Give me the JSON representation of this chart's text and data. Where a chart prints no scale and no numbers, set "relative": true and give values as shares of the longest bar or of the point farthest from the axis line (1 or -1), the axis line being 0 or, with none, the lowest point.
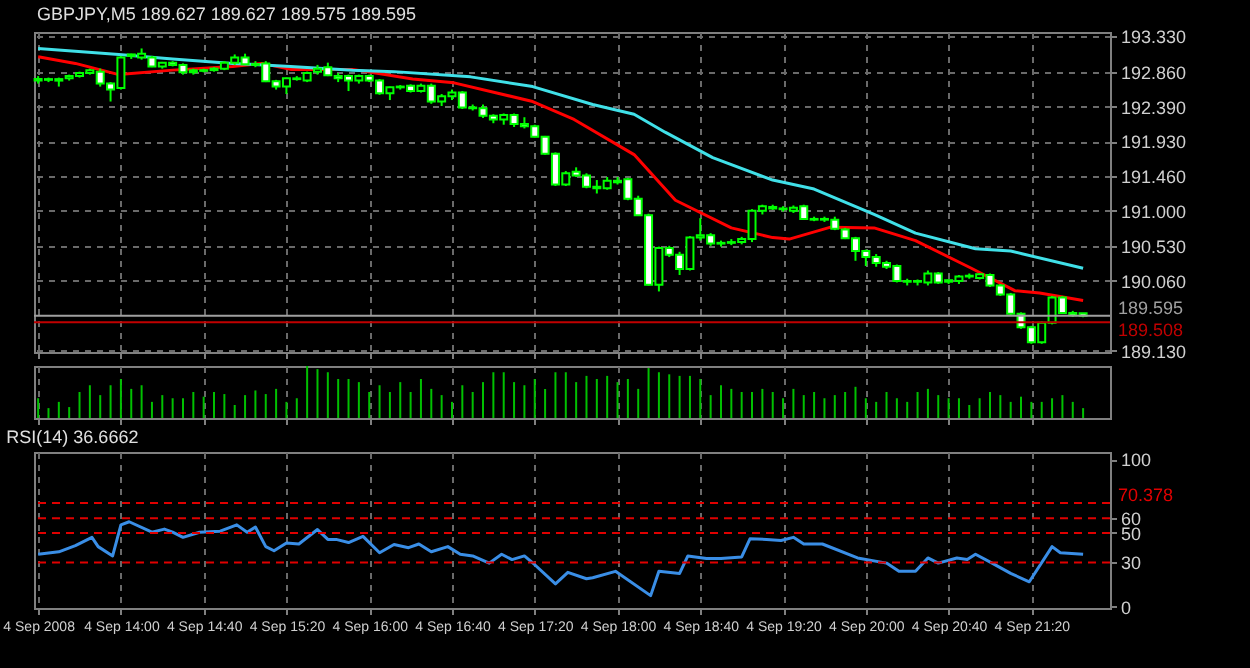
{
  "chart_data": [
    {
      "type": "candlestick",
      "title": "GBPJPY,M5  189.627 189.627 189.575 189.595",
      "color": "#00ff00",
      "x": [
        "2008-09-04T13:20",
        "2008-09-04T13:25",
        "2008-09-04T13:30",
        "2008-09-04T13:35",
        "2008-09-04T13:40",
        "2008-09-04T13:45",
        "2008-09-04T13:50",
        "2008-09-04T13:55",
        "2008-09-04T14:00",
        "2008-09-04T14:05",
        "2008-09-04T14:10",
        "2008-09-04T14:15",
        "2008-09-04T14:20",
        "2008-09-04T14:25",
        "2008-09-04T14:30",
        "2008-09-04T14:35",
        "2008-09-04T14:40",
        "2008-09-04T14:45",
        "2008-09-04T14:50",
        "2008-09-04T14:55",
        "2008-09-04T15:00",
        "2008-09-04T15:05",
        "2008-09-04T15:10",
        "2008-09-04T15:15",
        "2008-09-04T15:20",
        "2008-09-04T15:25",
        "2008-09-04T15:30",
        "2008-09-04T15:35",
        "2008-09-04T15:40",
        "2008-09-04T15:45",
        "2008-09-04T15:50",
        "2008-09-04T15:55",
        "2008-09-04T16:00",
        "2008-09-04T16:05",
        "2008-09-04T16:10",
        "2008-09-04T16:15",
        "2008-09-04T16:20",
        "2008-09-04T16:25",
        "2008-09-04T16:30",
        "2008-09-04T16:35",
        "2008-09-04T16:40",
        "2008-09-04T16:45",
        "2008-09-04T16:50",
        "2008-09-04T16:55",
        "2008-09-04T17:00",
        "2008-09-04T17:05",
        "2008-09-04T17:10",
        "2008-09-04T17:15",
        "2008-09-04T17:20",
        "2008-09-04T17:25",
        "2008-09-04T17:30",
        "2008-09-04T17:35",
        "2008-09-04T17:40",
        "2008-09-04T17:45",
        "2008-09-04T17:50",
        "2008-09-04T17:55",
        "2008-09-04T18:00",
        "2008-09-04T18:05",
        "2008-09-04T18:10",
        "2008-09-04T18:15",
        "2008-09-04T18:20",
        "2008-09-04T18:25",
        "2008-09-04T18:30",
        "2008-09-04T18:35",
        "2008-09-04T18:40",
        "2008-09-04T18:45",
        "2008-09-04T18:50",
        "2008-09-04T18:55",
        "2008-09-04T19:00",
        "2008-09-04T19:05",
        "2008-09-04T19:10",
        "2008-09-04T19:15",
        "2008-09-04T19:20",
        "2008-09-04T19:25",
        "2008-09-04T19:30",
        "2008-09-04T19:35",
        "2008-09-04T19:40",
        "2008-09-04T19:45",
        "2008-09-04T19:50",
        "2008-09-04T19:55",
        "2008-09-04T20:00",
        "2008-09-04T20:05",
        "2008-09-04T20:10",
        "2008-09-04T20:15",
        "2008-09-04T20:20",
        "2008-09-04T20:25",
        "2008-09-04T20:30",
        "2008-09-04T20:35",
        "2008-09-04T20:40",
        "2008-09-04T20:45",
        "2008-09-04T20:50",
        "2008-09-04T20:55",
        "2008-09-04T21:00",
        "2008-09-04T21:05",
        "2008-09-04T21:10",
        "2008-09-04T21:15",
        "2008-09-04T21:20",
        "2008-09-04T21:25",
        "2008-09-04T21:30",
        "2008-09-04T21:35",
        "2008-09-04T21:40",
        "2008-09-04T21:45"
      ],
      "ohlc": [
        [
          192.74,
          192.8,
          192.7,
          192.76
        ],
        [
          192.76,
          192.78,
          192.72,
          192.75
        ],
        [
          192.74,
          192.78,
          192.66,
          192.76
        ],
        [
          192.77,
          192.82,
          192.74,
          192.8
        ],
        [
          192.8,
          192.86,
          192.78,
          192.84
        ],
        [
          192.84,
          192.9,
          192.82,
          192.88
        ],
        [
          192.86,
          192.9,
          192.66,
          192.7
        ],
        [
          192.7,
          192.72,
          192.46,
          192.62
        ],
        [
          192.64,
          193.07,
          192.62,
          193.05
        ],
        [
          193.07,
          193.1,
          193.03,
          193.09
        ],
        [
          193.05,
          193.17,
          193.02,
          193.1
        ],
        [
          193.05,
          193.07,
          192.92,
          192.93
        ],
        [
          192.93,
          192.99,
          192.9,
          192.98
        ],
        [
          192.98,
          193.0,
          192.93,
          192.95
        ],
        [
          192.95,
          192.97,
          192.82,
          192.85
        ],
        [
          192.85,
          192.9,
          192.82,
          192.88
        ],
        [
          192.88,
          192.9,
          192.85,
          192.87
        ],
        [
          192.88,
          192.92,
          192.86,
          192.9
        ],
        [
          192.9,
          193.0,
          192.88,
          192.98
        ],
        [
          192.98,
          193.09,
          192.95,
          193.05
        ],
        [
          193.05,
          193.1,
          192.95,
          192.96
        ],
        [
          192.96,
          193.0,
          192.92,
          192.95
        ],
        [
          192.97,
          193.0,
          192.72,
          192.73
        ],
        [
          192.73,
          192.75,
          192.62,
          192.66
        ],
        [
          192.66,
          192.78,
          192.56,
          192.77
        ],
        [
          192.77,
          192.8,
          192.74,
          192.76
        ],
        [
          192.74,
          192.86,
          192.72,
          192.84
        ],
        [
          192.86,
          192.95,
          192.82,
          192.9
        ],
        [
          192.92,
          192.98,
          192.8,
          192.81
        ],
        [
          192.8,
          192.84,
          192.72,
          192.77
        ],
        [
          192.8,
          192.82,
          192.6,
          192.74
        ],
        [
          192.74,
          192.82,
          192.7,
          192.8
        ],
        [
          192.8,
          192.82,
          192.72,
          192.74
        ],
        [
          192.74,
          192.76,
          192.55,
          192.57
        ],
        [
          192.57,
          192.66,
          192.48,
          192.65
        ],
        [
          192.65,
          192.68,
          192.62,
          192.66
        ],
        [
          192.67,
          192.69,
          192.58,
          192.6
        ],
        [
          192.6,
          192.7,
          192.58,
          192.67
        ],
        [
          192.67,
          192.7,
          192.43,
          192.46
        ],
        [
          192.46,
          192.56,
          192.4,
          192.53
        ],
        [
          192.53,
          192.62,
          192.48,
          192.58
        ],
        [
          192.58,
          192.6,
          192.36,
          192.38
        ],
        [
          192.38,
          192.42,
          192.34,
          192.37
        ],
        [
          192.37,
          192.42,
          192.24,
          192.27
        ],
        [
          192.27,
          192.29,
          192.17,
          192.22
        ],
        [
          192.22,
          192.3,
          192.15,
          192.28
        ],
        [
          192.28,
          192.3,
          192.12,
          192.16
        ],
        [
          192.16,
          192.25,
          192.1,
          192.13
        ],
        [
          192.13,
          192.15,
          191.98,
          191.99
        ],
        [
          191.99,
          192.0,
          191.75,
          191.76
        ],
        [
          191.76,
          191.78,
          191.33,
          191.35
        ],
        [
          191.35,
          191.53,
          191.33,
          191.5
        ],
        [
          191.52,
          191.58,
          191.45,
          191.47
        ],
        [
          191.47,
          191.5,
          191.3,
          191.32
        ],
        [
          191.32,
          191.41,
          191.23,
          191.3
        ],
        [
          191.3,
          191.45,
          191.28,
          191.4
        ],
        [
          191.4,
          191.45,
          191.35,
          191.38
        ],
        [
          191.42,
          191.44,
          191.14,
          191.16
        ],
        [
          191.16,
          191.2,
          190.93,
          190.94
        ],
        [
          190.94,
          190.96,
          190.0,
          190.01
        ],
        [
          190.01,
          190.52,
          189.92,
          190.5
        ],
        [
          190.5,
          190.53,
          190.38,
          190.41
        ],
        [
          190.41,
          190.45,
          190.14,
          190.22
        ],
        [
          190.22,
          190.66,
          190.2,
          190.64
        ],
        [
          190.64,
          190.9,
          190.6,
          190.67
        ],
        [
          190.67,
          190.7,
          190.53,
          190.56
        ],
        [
          190.56,
          190.6,
          190.52,
          190.57
        ],
        [
          190.57,
          190.62,
          190.54,
          190.58
        ],
        [
          190.58,
          190.65,
          190.55,
          190.62
        ],
        [
          190.62,
          191.02,
          190.58,
          191.0
        ],
        [
          191.0,
          191.08,
          190.95,
          191.06
        ],
        [
          191.05,
          191.08,
          191.01,
          191.03
        ],
        [
          191.03,
          191.06,
          190.99,
          191.02
        ],
        [
          191.0,
          191.07,
          190.97,
          191.04
        ],
        [
          191.06,
          191.08,
          190.88,
          190.89
        ],
        [
          190.89,
          190.92,
          190.86,
          190.88
        ],
        [
          190.88,
          190.92,
          190.85,
          190.89
        ],
        [
          190.88,
          190.92,
          190.74,
          190.76
        ],
        [
          190.75,
          190.77,
          190.62,
          190.63
        ],
        [
          190.63,
          190.65,
          190.33,
          190.46
        ],
        [
          190.46,
          190.48,
          190.26,
          190.38
        ],
        [
          190.38,
          190.42,
          190.25,
          190.3
        ],
        [
          190.3,
          190.33,
          190.22,
          190.25
        ],
        [
          190.26,
          190.28,
          190.04,
          190.06
        ],
        [
          190.06,
          190.09,
          190.0,
          190.05
        ],
        [
          190.05,
          190.08,
          190.0,
          190.06
        ],
        [
          190.04,
          190.2,
          190.0,
          190.16
        ],
        [
          190.16,
          190.18,
          190.02,
          190.04
        ],
        [
          190.05,
          190.08,
          190.02,
          190.07
        ],
        [
          190.06,
          190.14,
          190.02,
          190.12
        ],
        [
          190.12,
          190.16,
          190.09,
          190.13
        ],
        [
          190.1,
          190.16,
          190.08,
          190.15
        ],
        [
          190.14,
          190.16,
          189.98,
          190.0
        ],
        [
          190.0,
          190.02,
          189.86,
          189.88
        ],
        [
          189.88,
          189.9,
          189.6,
          189.62
        ],
        [
          189.62,
          189.64,
          189.42,
          189.44
        ],
        [
          189.44,
          189.46,
          189.22,
          189.24
        ],
        [
          189.24,
          189.52,
          189.22,
          189.5
        ],
        [
          189.5,
          189.86,
          189.48,
          189.84
        ],
        [
          189.84,
          189.86,
          189.62,
          189.63
        ],
        [
          189.63,
          189.66,
          189.58,
          189.6
        ],
        [
          189.627,
          189.627,
          189.575,
          189.595
        ]
      ],
      "colors": [
        "#000000",
        "#ffffff",
        "#000000",
        "#000000",
        "#000000",
        "#000000",
        "#ffffff",
        "#ffffff",
        "#000000",
        "#000000",
        "#000000",
        "#ffffff",
        "#000000",
        "#ffffff",
        "#ffffff",
        "#000000",
        "#ffffff",
        "#000000",
        "#000000",
        "#000000",
        "#ffffff",
        "#ffffff",
        "#ffffff",
        "#ffffff",
        "#000000",
        "#ffffff",
        "#000000",
        "#000000",
        "#ffffff",
        "#ffffff",
        "#ffffff",
        "#000000",
        "#ffffff",
        "#ffffff",
        "#000000",
        "#000000",
        "#ffffff",
        "#000000",
        "#ffffff",
        "#000000",
        "#000000",
        "#ffffff",
        "#ffffff",
        "#ffffff",
        "#ffffff",
        "#000000",
        "#ffffff",
        "#ffffff",
        "#ffffff",
        "#ffffff",
        "#ffffff",
        "#000000",
        "#ffffff",
        "#ffffff",
        "#ffffff",
        "#000000",
        "#ffffff",
        "#ffffff",
        "#ffffff",
        "#ffffff",
        "#000000",
        "#ffffff",
        "#ffffff",
        "#000000",
        "#000000",
        "#ffffff",
        "#000000",
        "#000000",
        "#000000",
        "#000000",
        "#000000",
        "#ffffff",
        "#ffffff",
        "#000000",
        "#ffffff",
        "#ffffff",
        "#000000",
        "#ffffff",
        "#ffffff",
        "#ffffff",
        "#ffffff",
        "#ffffff",
        "#ffffff",
        "#ffffff",
        "#ffffff",
        "#000000",
        "#000000",
        "#ffffff",
        "#000000",
        "#000000",
        "#000000",
        "#000000",
        "#ffffff",
        "#ffffff",
        "#ffffff",
        "#ffffff",
        "#ffffff",
        "#000000",
        "#000000",
        "#ffffff",
        "#ffffff",
        "#ffffff"
      ],
      "series": [
        {
          "type": "line",
          "color": "#ff0000",
          "x": [
            "2008-09-04T13:20",
            "2008-09-04T13:38",
            "2008-09-04T13:59",
            "2008-09-04T14:25",
            "2008-09-04T14:54",
            "2008-09-04T15:08",
            "2008-09-04T15:22",
            "2008-09-04T15:52",
            "2008-09-04T16:21",
            "2008-09-04T16:41",
            "2008-09-04T17:19",
            "2008-09-04T17:39",
            "2008-09-04T18:08",
            "2008-09-04T18:28",
            "2008-09-04T18:55",
            "2008-09-04T19:15",
            "2008-09-04T19:23",
            "2008-09-04T19:43",
            "2008-09-04T20:04",
            "2008-09-04T20:24",
            "2008-09-04T20:51",
            "2008-09-04T21:12",
            "2008-09-04T21:24",
            "2008-09-04T21:45"
          ],
          "values": [
            193.06,
            192.97,
            192.82,
            192.88,
            192.93,
            192.97,
            192.89,
            192.89,
            192.76,
            192.71,
            192.46,
            192.22,
            191.75,
            191.14,
            190.77,
            190.64,
            190.62,
            190.78,
            190.77,
            190.6,
            190.23,
            189.93,
            189.9,
            189.8
          ]
        },
        {
          "type": "line",
          "color": "#40e0e8",
          "x": [
            "2008-09-04T13:20",
            "2008-09-04T13:59",
            "2008-09-04T14:25",
            "2008-09-04T14:54",
            "2008-09-04T15:22",
            "2008-09-04T15:52",
            "2008-09-04T16:12",
            "2008-09-04T16:49",
            "2008-09-04T17:19",
            "2008-09-04T17:48",
            "2008-09-04T18:08",
            "2008-09-04T18:23",
            "2008-09-04T18:46",
            "2008-09-04T19:15",
            "2008-09-04T19:35",
            "2008-09-04T20:04",
            "2008-09-04T20:24",
            "2008-09-04T20:53",
            "2008-09-04T21:10",
            "2008-09-04T21:45"
          ],
          "values": [
            193.17,
            193.09,
            193.03,
            192.97,
            192.93,
            192.88,
            192.86,
            192.79,
            192.66,
            192.42,
            192.29,
            192.05,
            191.71,
            191.41,
            191.29,
            190.95,
            190.7,
            190.49,
            190.46,
            190.23
          ]
        }
      ],
      "ylim": [
        189.11,
        193.39
      ],
      "yticks": [
        {
          "value": 193.33,
          "label": "193.330"
        },
        {
          "value": 192.86,
          "label": "192.860"
        },
        {
          "value": 192.39,
          "label": "192.390"
        },
        {
          "value": 191.93,
          "label": "191.930"
        },
        {
          "value": 191.46,
          "label": "191.460"
        },
        {
          "value": 191.0,
          "label": "191.000"
        },
        {
          "value": 190.53,
          "label": "190.530"
        },
        {
          "value": 190.06,
          "label": "190.060"
        },
        {
          "value": 189.13,
          "label": "189.130"
        }
      ],
      "xlim": [
        "2008-09-04T13:18",
        "2008-09-04T21:58"
      ],
      "xticks": [
        {
          "value": "2008-09-04T13:20",
          "label": null
        },
        {
          "value": "2008-09-04T14:00",
          "label": null
        },
        {
          "value": "2008-09-04T14:40",
          "label": null
        },
        {
          "value": "2008-09-04T15:20",
          "label": null
        },
        {
          "value": "2008-09-04T16:00",
          "label": null
        },
        {
          "value": "2008-09-04T16:40",
          "label": null
        },
        {
          "value": "2008-09-04T17:20",
          "label": null
        },
        {
          "value": "2008-09-04T18:00",
          "label": null
        },
        {
          "value": "2008-09-04T18:40",
          "label": null
        },
        {
          "value": "2008-09-04T19:20",
          "label": null
        },
        {
          "value": "2008-09-04T20:00",
          "label": null
        },
        {
          "value": "2008-09-04T20:40",
          "label": null
        },
        {
          "value": "2008-09-04T21:20",
          "label": null
        }
      ],
      "ref_lines": [
        {
          "axis": "y",
          "value": 189.595,
          "label": "189.595",
          "color": "#a0a0a0"
        },
        {
          "axis": "y",
          "value": 189.508,
          "label": "189.508",
          "color": "#c00000"
        }
      ],
      "grid": true,
      "tick_labels": "y"
    },
    {
      "type": "bar",
      "relative": true,
      "color": "#00c000",
      "xlim": [
        "2008-09-04T13:18",
        "2008-09-04T21:58"
      ],
      "grid": "x",
      "tick_labels": false,
      "xticks": [
        {
          "value": "2008-09-04T13:20",
          "label": null
        },
        {
          "value": "2008-09-04T14:00",
          "label": null
        },
        {
          "value": "2008-09-04T14:40",
          "label": null
        },
        {
          "value": "2008-09-04T15:20",
          "label": null
        },
        {
          "value": "2008-09-04T16:00",
          "label": null
        },
        {
          "value": "2008-09-04T16:40",
          "label": null
        },
        {
          "value": "2008-09-04T17:20",
          "label": null
        },
        {
          "value": "2008-09-04T18:00",
          "label": null
        },
        {
          "value": "2008-09-04T18:40",
          "label": null
        },
        {
          "value": "2008-09-04T19:20",
          "label": null
        },
        {
          "value": "2008-09-04T20:00",
          "label": null
        },
        {
          "value": "2008-09-04T20:40",
          "label": null
        },
        {
          "value": "2008-09-04T21:20",
          "label": null
        }
      ],
      "x": [
        "2008-09-04T13:20",
        "2008-09-04T13:25",
        "2008-09-04T13:30",
        "2008-09-04T13:35",
        "2008-09-04T13:40",
        "2008-09-04T13:45",
        "2008-09-04T13:50",
        "2008-09-04T13:55",
        "2008-09-04T14:00",
        "2008-09-04T14:05",
        "2008-09-04T14:10",
        "2008-09-04T14:15",
        "2008-09-04T14:20",
        "2008-09-04T14:25",
        "2008-09-04T14:30",
        "2008-09-04T14:35",
        "2008-09-04T14:40",
        "2008-09-04T14:45",
        "2008-09-04T14:50",
        "2008-09-04T14:55",
        "2008-09-04T15:00",
        "2008-09-04T15:05",
        "2008-09-04T15:10",
        "2008-09-04T15:15",
        "2008-09-04T15:20",
        "2008-09-04T15:25",
        "2008-09-04T15:30",
        "2008-09-04T15:35",
        "2008-09-04T15:40",
        "2008-09-04T15:45",
        "2008-09-04T15:50",
        "2008-09-04T15:55",
        "2008-09-04T16:00",
        "2008-09-04T16:05",
        "2008-09-04T16:10",
        "2008-09-04T16:15",
        "2008-09-04T16:20",
        "2008-09-04T16:25",
        "2008-09-04T16:30",
        "2008-09-04T16:35",
        "2008-09-04T16:40",
        "2008-09-04T16:45",
        "2008-09-04T16:50",
        "2008-09-04T16:55",
        "2008-09-04T17:00",
        "2008-09-04T17:05",
        "2008-09-04T17:10",
        "2008-09-04T17:15",
        "2008-09-04T17:20",
        "2008-09-04T17:25",
        "2008-09-04T17:30",
        "2008-09-04T17:35",
        "2008-09-04T17:40",
        "2008-09-04T17:45",
        "2008-09-04T17:50",
        "2008-09-04T17:55",
        "2008-09-04T18:00",
        "2008-09-04T18:05",
        "2008-09-04T18:10",
        "2008-09-04T18:15",
        "2008-09-04T18:20",
        "2008-09-04T18:25",
        "2008-09-04T18:30",
        "2008-09-04T18:35",
        "2008-09-04T18:40",
        "2008-09-04T18:45",
        "2008-09-04T18:50",
        "2008-09-04T18:55",
        "2008-09-04T19:00",
        "2008-09-04T19:05",
        "2008-09-04T19:10",
        "2008-09-04T19:15",
        "2008-09-04T19:20",
        "2008-09-04T19:25",
        "2008-09-04T19:30",
        "2008-09-04T19:35",
        "2008-09-04T19:40",
        "2008-09-04T19:45",
        "2008-09-04T19:50",
        "2008-09-04T19:55",
        "2008-09-04T20:00",
        "2008-09-04T20:05",
        "2008-09-04T20:10",
        "2008-09-04T20:15",
        "2008-09-04T20:20",
        "2008-09-04T20:25",
        "2008-09-04T20:30",
        "2008-09-04T20:35",
        "2008-09-04T20:40",
        "2008-09-04T20:45",
        "2008-09-04T20:50",
        "2008-09-04T20:55",
        "2008-09-04T21:00",
        "2008-09-04T21:05",
        "2008-09-04T21:10",
        "2008-09-04T21:15",
        "2008-09-04T21:20",
        "2008-09-04T21:25",
        "2008-09-04T21:30",
        "2008-09-04T21:35",
        "2008-09-04T21:40",
        "2008-09-04T21:45"
      ],
      "values": [
        0.38,
        0.19,
        0.31,
        0.21,
        0.5,
        0.63,
        0.44,
        0.63,
        0.75,
        0.56,
        0.63,
        0.31,
        0.44,
        0.38,
        0.38,
        0.5,
        0.41,
        0.5,
        0.46,
        0.25,
        0.44,
        0.53,
        0.46,
        0.56,
        0.31,
        0.38,
        1,
        0.94,
        0.88,
        0.75,
        0.75,
        0.69,
        0.5,
        0.63,
        0.5,
        0.69,
        0.5,
        0.75,
        0.56,
        0.44,
        0.31,
        0.63,
        0.5,
        0.69,
        0.88,
        0.88,
        0.69,
        0.63,
        0.75,
        0.56,
        0.88,
        0.88,
        0.69,
        0.81,
        0.75,
        0.81,
        0.69,
        0.75,
        0.56,
        0.96,
        0.88,
        0.84,
        0.81,
        0.81,
        0.75,
        0.44,
        0.63,
        0.56,
        0.5,
        0.5,
        0.56,
        0.5,
        0.38,
        0.56,
        0.44,
        0.5,
        0.38,
        0.44,
        0.5,
        0.6,
        0.38,
        0.31,
        0.5,
        0.38,
        0.31,
        0.5,
        0.56,
        0.44,
        0.38,
        0.38,
        0.25,
        0.38,
        0.5,
        0.44,
        0.31,
        0.41,
        0.31,
        0.31,
        0.38,
        0.44,
        0.31,
        0.19
      ]
    },
    {
      "type": "line",
      "title": "RSI(14) 36.6662",
      "series": [
        {
          "color": "#3a8ee6",
          "x": [
            "2008-09-04T13:20",
            "2008-09-04T13:30",
            "2008-09-04T13:38",
            "2008-09-04T13:46",
            "2008-09-04T13:49",
            "2008-09-04T13:56",
            "2008-09-04T14:00",
            "2008-09-04T14:04",
            "2008-09-04T14:15",
            "2008-09-04T14:21",
            "2008-09-04T14:25",
            "2008-09-04T14:30",
            "2008-09-04T14:38",
            "2008-09-04T14:48",
            "2008-09-04T14:56",
            "2008-09-04T15:01",
            "2008-09-04T15:05",
            "2008-09-04T15:10",
            "2008-09-04T15:14",
            "2008-09-04T15:20",
            "2008-09-04T15:26",
            "2008-09-04T15:35",
            "2008-09-04T15:40",
            "2008-09-04T15:44",
            "2008-09-04T15:50",
            "2008-09-04T15:57",
            "2008-09-04T16:05",
            "2008-09-04T16:12",
            "2008-09-04T16:19",
            "2008-09-04T16:24",
            "2008-09-04T16:30",
            "2008-09-04T16:38",
            "2008-09-04T16:44",
            "2008-09-04T16:50",
            "2008-09-04T16:58",
            "2008-09-04T17:04",
            "2008-09-04T17:09",
            "2008-09-04T17:15",
            "2008-09-04T17:20",
            "2008-09-04T17:30",
            "2008-09-04T17:36",
            "2008-09-04T17:45",
            "2008-09-04T17:48",
            "2008-09-04T17:59",
            "2008-09-04T18:16",
            "2008-09-04T18:20",
            "2008-09-04T18:30",
            "2008-09-04T18:34",
            "2008-09-04T18:43",
            "2008-09-04T18:50",
            "2008-09-04T19:00",
            "2008-09-04T19:04",
            "2008-09-04T19:12",
            "2008-09-04T19:19",
            "2008-09-04T19:25",
            "2008-09-04T19:30",
            "2008-09-04T19:39",
            "2008-09-04T19:56",
            "2008-09-04T20:10",
            "2008-09-04T20:16",
            "2008-09-04T20:24",
            "2008-09-04T20:30",
            "2008-09-04T20:35",
            "2008-09-04T20:44",
            "2008-09-04T20:49",
            "2008-09-04T20:53",
            "2008-09-04T21:01",
            "2008-09-04T21:10",
            "2008-09-04T21:19",
            "2008-09-04T21:30",
            "2008-09-04T21:34",
            "2008-09-04T21:45"
          ],
          "values": [
            35.5,
            37.2,
            41.4,
            47.0,
            40.7,
            34.4,
            55.5,
            57.6,
            50.5,
            52.6,
            50.5,
            47.0,
            50.5,
            51.2,
            55.5,
            50.5,
            54.0,
            40.7,
            37.9,
            43.2,
            42.5,
            52.3,
            45.6,
            45.6,
            43.5,
            47.7,
            36.5,
            42.1,
            40.0,
            42.5,
            37.2,
            40.7,
            35.5,
            34.4,
            29.5,
            35.5,
            31.9,
            34.4,
            28.4,
            15.4,
            23.2,
            18.9,
            19.6,
            23.9,
            7.4,
            23.9,
            22.5,
            34.4,
            32.6,
            32.6,
            33.7,
            46.0,
            45.6,
            44.9,
            47.0,
            42.5,
            42.5,
            33.0,
            29.5,
            23.9,
            23.9,
            33.0,
            29.5,
            33.0,
            31.9,
            35.5,
            29.5,
            22.5,
            16.8,
            40.7,
            36.5,
            35.5
          ]
        }
      ],
      "ylim": [
        -1,
        105
      ],
      "yticks": [
        100,
        60,
        50,
        30,
        0
      ],
      "xlim": [
        "2008-09-04T13:18",
        "2008-09-04T21:58"
      ],
      "xticks": [
        {
          "value": "2008-09-04T13:20",
          "label": "4 Sep 2008"
        },
        {
          "value": "2008-09-04T14:00",
          "label": "4 Sep 14:00"
        },
        {
          "value": "2008-09-04T14:40",
          "label": "4 Sep 14:40"
        },
        {
          "value": "2008-09-04T15:20",
          "label": "4 Sep 15:20"
        },
        {
          "value": "2008-09-04T16:00",
          "label": "4 Sep 16:00"
        },
        {
          "value": "2008-09-04T16:40",
          "label": "4 Sep 16:40"
        },
        {
          "value": "2008-09-04T17:20",
          "label": "4 Sep 17:20"
        },
        {
          "value": "2008-09-04T18:00",
          "label": "4 Sep 18:00"
        },
        {
          "value": "2008-09-04T18:40",
          "label": "4 Sep 18:40"
        },
        {
          "value": "2008-09-04T19:20",
          "label": "4 Sep 19:20"
        },
        {
          "value": "2008-09-04T20:00",
          "label": "4 Sep 20:00"
        },
        {
          "value": "2008-09-04T20:40",
          "label": "4 Sep 20:40"
        },
        {
          "value": "2008-09-04T21:20",
          "label": "4 Sep 21:20"
        }
      ],
      "ref_lines": [
        {
          "axis": "y",
          "value": 70.378,
          "label": "70.378",
          "color": "#e00000",
          "line_style": "dashed"
        },
        {
          "axis": "y",
          "value": 60,
          "color": "#e00000",
          "line_style": "dashed"
        },
        {
          "axis": "y",
          "value": 50,
          "color": "#e00000",
          "line_style": "dashed"
        },
        {
          "axis": "y",
          "value": 30,
          "color": "#e00000",
          "line_style": "dashed"
        }
      ],
      "grid": "x"
    }
  ]
}
